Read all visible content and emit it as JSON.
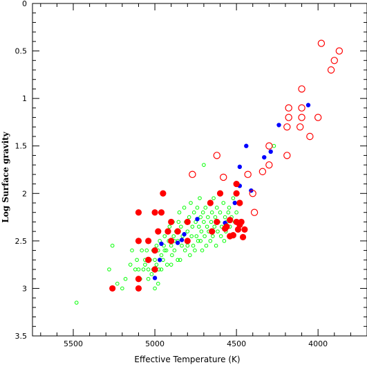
{
  "chart_data": {
    "type": "scatter",
    "title": "",
    "xlabel": "Effective Temperature (K)",
    "ylabel": "Log  Surface  gravity",
    "xlim": [
      5750,
      3700
    ],
    "ylim": [
      0,
      3.5
    ],
    "x_reversed": true,
    "y_inverted": true,
    "grid": false,
    "legend": "none",
    "x_ticks": [
      5500,
      5000,
      4500,
      4000
    ],
    "y_ticks": [
      0,
      0.5,
      1,
      1.5,
      2,
      2.5,
      3,
      3.5
    ],
    "x_tick_labels": [
      "5500",
      "5000",
      "4500",
      "4000"
    ],
    "y_tick_labels": [
      "0",
      "0.5",
      "1",
      "1.5",
      "2",
      "2.5",
      "3",
      "3.5"
    ],
    "series": [
      {
        "marker": "open-circle-small",
        "color": "#00ff00",
        "points": [
          [
            5480,
            3.15
          ],
          [
            5260,
            2.55
          ],
          [
            5280,
            2.8
          ],
          [
            5230,
            2.95
          ],
          [
            5200,
            3.0
          ],
          [
            5180,
            2.9
          ],
          [
            5150,
            2.75
          ],
          [
            5140,
            2.6
          ],
          [
            5120,
            2.8
          ],
          [
            5110,
            2.7
          ],
          [
            5100,
            2.8
          ],
          [
            5090,
            2.9
          ],
          [
            5080,
            2.6
          ],
          [
            5070,
            2.8
          ],
          [
            5060,
            2.7
          ],
          [
            5050,
            2.6
          ],
          [
            5040,
            2.8
          ],
          [
            5030,
            2.7
          ],
          [
            5020,
            2.85
          ],
          [
            5010,
            2.6
          ],
          [
            5000,
            2.7
          ],
          [
            4990,
            2.75
          ],
          [
            4980,
            2.6
          ],
          [
            4975,
            2.8
          ],
          [
            4970,
            2.5
          ],
          [
            4960,
            2.65
          ],
          [
            4950,
            2.7
          ],
          [
            4945,
            2.55
          ],
          [
            4940,
            2.45
          ],
          [
            4930,
            2.6
          ],
          [
            4925,
            2.75
          ],
          [
            4920,
            2.4
          ],
          [
            4915,
            2.5
          ],
          [
            4910,
            2.35
          ],
          [
            4900,
            2.55
          ],
          [
            4895,
            2.65
          ],
          [
            4890,
            2.3
          ],
          [
            4885,
            2.45
          ],
          [
            4880,
            2.6
          ],
          [
            4870,
            2.4
          ],
          [
            4860,
            2.5
          ],
          [
            4855,
            2.3
          ],
          [
            4850,
            2.2
          ],
          [
            4845,
            2.7
          ],
          [
            4840,
            2.35
          ],
          [
            4835,
            2.55
          ],
          [
            4830,
            2.45
          ],
          [
            4820,
            2.15
          ],
          [
            4815,
            2.6
          ],
          [
            4810,
            2.3
          ],
          [
            4800,
            2.4
          ],
          [
            4795,
            2.5
          ],
          [
            4790,
            2.25
          ],
          [
            4785,
            2.65
          ],
          [
            4780,
            2.1
          ],
          [
            4775,
            2.45
          ],
          [
            4770,
            2.35
          ],
          [
            4765,
            2.55
          ],
          [
            4760,
            2.2
          ],
          [
            4755,
            2.6
          ],
          [
            4750,
            2.3
          ],
          [
            4745,
            2.45
          ],
          [
            4740,
            2.15
          ],
          [
            4735,
            2.5
          ],
          [
            4730,
            2.35
          ],
          [
            4725,
            2.05
          ],
          [
            4720,
            2.25
          ],
          [
            4715,
            2.4
          ],
          [
            4710,
            2.6
          ],
          [
            4705,
            2.2
          ],
          [
            4700,
            2.3
          ],
          [
            4695,
            2.45
          ],
          [
            4690,
            2.15
          ],
          [
            4685,
            2.55
          ],
          [
            4680,
            2.35
          ],
          [
            4675,
            2.25
          ],
          [
            4670,
            2.4
          ],
          [
            4665,
            2.1
          ],
          [
            4660,
            2.5
          ],
          [
            4655,
            2.3
          ],
          [
            4650,
            2.2
          ],
          [
            4645,
            2.45
          ],
          [
            4640,
            2.05
          ],
          [
            4635,
            2.35
          ],
          [
            4630,
            2.25
          ],
          [
            4625,
            2.55
          ],
          [
            4620,
            2.15
          ],
          [
            4615,
            2.4
          ],
          [
            4610,
            2.3
          ],
          [
            4600,
            2.2
          ],
          [
            4595,
            2.45
          ],
          [
            4590,
            2.35
          ],
          [
            4580,
            2.1
          ],
          [
            4575,
            2.5
          ],
          [
            4570,
            2.25
          ],
          [
            4565,
            2.4
          ],
          [
            4560,
            2.3
          ],
          [
            4550,
            2.2
          ],
          [
            4545,
            2.15
          ],
          [
            4540,
            2.35
          ],
          [
            4530,
            2.25
          ],
          [
            4520,
            2.05
          ],
          [
            4510,
            2.3
          ],
          [
            4500,
            2.2
          ],
          [
            4860,
            2.7
          ],
          [
            4880,
            2.5
          ],
          [
            4940,
            2.6
          ],
          [
            4960,
            2.8
          ],
          [
            4990,
            2.55
          ],
          [
            5010,
            2.8
          ],
          [
            5040,
            2.9
          ],
          [
            5000,
            3.0
          ],
          [
            4980,
            2.95
          ],
          [
            5060,
            2.75
          ],
          [
            4700,
            1.7
          ],
          [
            4270,
            1.5
          ],
          [
            4900,
            2.75
          ],
          [
            4720,
            2.5
          ],
          [
            4800,
            2.55
          ]
        ]
      },
      {
        "marker": "filled-circle-small",
        "color": "#0000ff",
        "points": [
          [
            4060,
            1.07
          ],
          [
            4240,
            1.28
          ],
          [
            4290,
            1.56
          ],
          [
            4330,
            1.62
          ],
          [
            4440,
            1.5
          ],
          [
            4480,
            1.72
          ],
          [
            4480,
            1.92
          ],
          [
            4410,
            1.97
          ],
          [
            4510,
            2.1
          ],
          [
            4570,
            2.31
          ],
          [
            4560,
            2.34
          ],
          [
            4740,
            2.27
          ],
          [
            4820,
            2.43
          ],
          [
            4835,
            2.49
          ],
          [
            4860,
            2.52
          ],
          [
            4960,
            2.53
          ],
          [
            4970,
            2.7
          ],
          [
            4900,
            2.5
          ],
          [
            5000,
            2.89
          ]
        ]
      },
      {
        "marker": "filled-circle-large",
        "color": "#ff0000",
        "points": [
          [
            5260,
            3.0
          ],
          [
            5100,
            3.0
          ],
          [
            5100,
            2.9
          ],
          [
            5100,
            2.5
          ],
          [
            5100,
            2.2
          ],
          [
            5040,
            2.5
          ],
          [
            5040,
            2.7
          ],
          [
            5000,
            2.8
          ],
          [
            5000,
            2.6
          ],
          [
            5000,
            2.2
          ],
          [
            4980,
            2.4
          ],
          [
            4960,
            2.2
          ],
          [
            4950,
            2.0
          ],
          [
            4920,
            2.4
          ],
          [
            4900,
            2.3
          ],
          [
            4900,
            2.5
          ],
          [
            4860,
            2.4
          ],
          [
            4800,
            2.3
          ],
          [
            4800,
            2.5
          ],
          [
            4660,
            2.1
          ],
          [
            4650,
            2.4
          ],
          [
            4620,
            2.3
          ],
          [
            4600,
            2.0
          ],
          [
            4570,
            2.37
          ],
          [
            4560,
            2.35
          ],
          [
            4540,
            2.28
          ],
          [
            4540,
            2.45
          ],
          [
            4520,
            2.44
          ],
          [
            4500,
            2.3
          ],
          [
            4500,
            1.9
          ],
          [
            4500,
            2.0
          ],
          [
            4490,
            2.38
          ],
          [
            4480,
            2.33
          ],
          [
            4480,
            2.1
          ],
          [
            4470,
            2.3
          ],
          [
            4460,
            2.46
          ],
          [
            4450,
            2.38
          ]
        ]
      },
      {
        "marker": "open-circle-large",
        "color": "#ff0000",
        "points": [
          [
            3980,
            0.42
          ],
          [
            3870,
            0.5
          ],
          [
            3900,
            0.6
          ],
          [
            3920,
            0.7
          ],
          [
            4100,
            0.9
          ],
          [
            4100,
            1.1
          ],
          [
            4100,
            1.2
          ],
          [
            4000,
            1.2
          ],
          [
            4050,
            1.4
          ],
          [
            4180,
            1.1
          ],
          [
            4180,
            1.2
          ],
          [
            4190,
            1.3
          ],
          [
            4110,
            1.3
          ],
          [
            4190,
            1.6
          ],
          [
            4300,
            1.5
          ],
          [
            4300,
            1.7
          ],
          [
            4340,
            1.77
          ],
          [
            4430,
            1.8
          ],
          [
            4400,
            2.0
          ],
          [
            4390,
            2.2
          ],
          [
            4580,
            1.83
          ],
          [
            4620,
            1.6
          ],
          [
            4770,
            1.8
          ]
        ]
      }
    ]
  }
}
